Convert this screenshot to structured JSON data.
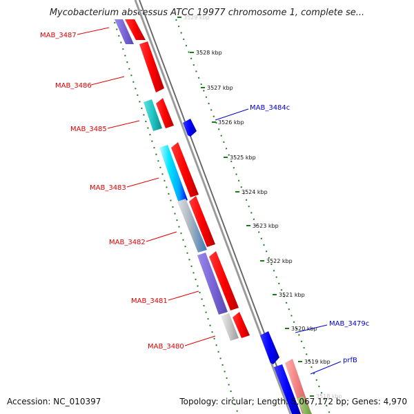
{
  "title": "Mycobacterium abscessus ATCC 19977 chromosome 1, complete se...",
  "footer": {
    "accession": "Accession: NC_010397",
    "summary": "Topology: circular; Length: 5,067,172 bp; Genes: 4,970"
  },
  "ticks": [
    {
      "label": "3529 kbp",
      "faded": true
    },
    {
      "label": "3528 kbp"
    },
    {
      "label": "3527 kbp"
    },
    {
      "label": "3526 kbp"
    },
    {
      "label": "3525 kbp"
    },
    {
      "label": "3524 kbp"
    },
    {
      "label": "3523 kbp"
    },
    {
      "label": "3522 kbp"
    },
    {
      "label": "3521 kbp"
    },
    {
      "label": "3520 kbp"
    },
    {
      "label": "3519 kbp"
    },
    {
      "label": "3518 kbp",
      "faded": true
    }
  ],
  "genes": [
    {
      "label": "MAB_3487",
      "strand": "left"
    },
    {
      "label": "MAB_3486",
      "strand": "left"
    },
    {
      "label": "MAB_3485",
      "strand": "left"
    },
    {
      "label": "MAB_3483",
      "strand": "left"
    },
    {
      "label": "MAB_3482",
      "strand": "left"
    },
    {
      "label": "MAB_3481",
      "strand": "left"
    },
    {
      "label": "MAB_3480",
      "strand": "left"
    },
    {
      "label": "MAB_3484c",
      "strand": "right"
    },
    {
      "label": "MAB_3479c",
      "strand": "right"
    },
    {
      "label": "prfB",
      "strand": "right"
    }
  ],
  "colors": {
    "forward_gene": "#ff0000",
    "reverse_gene": "#0000ff",
    "backbone": "#8a8a8a",
    "dotted_guide": "#1a7a1a",
    "label_left": "#e00000",
    "label_right": "#0000cc"
  }
}
